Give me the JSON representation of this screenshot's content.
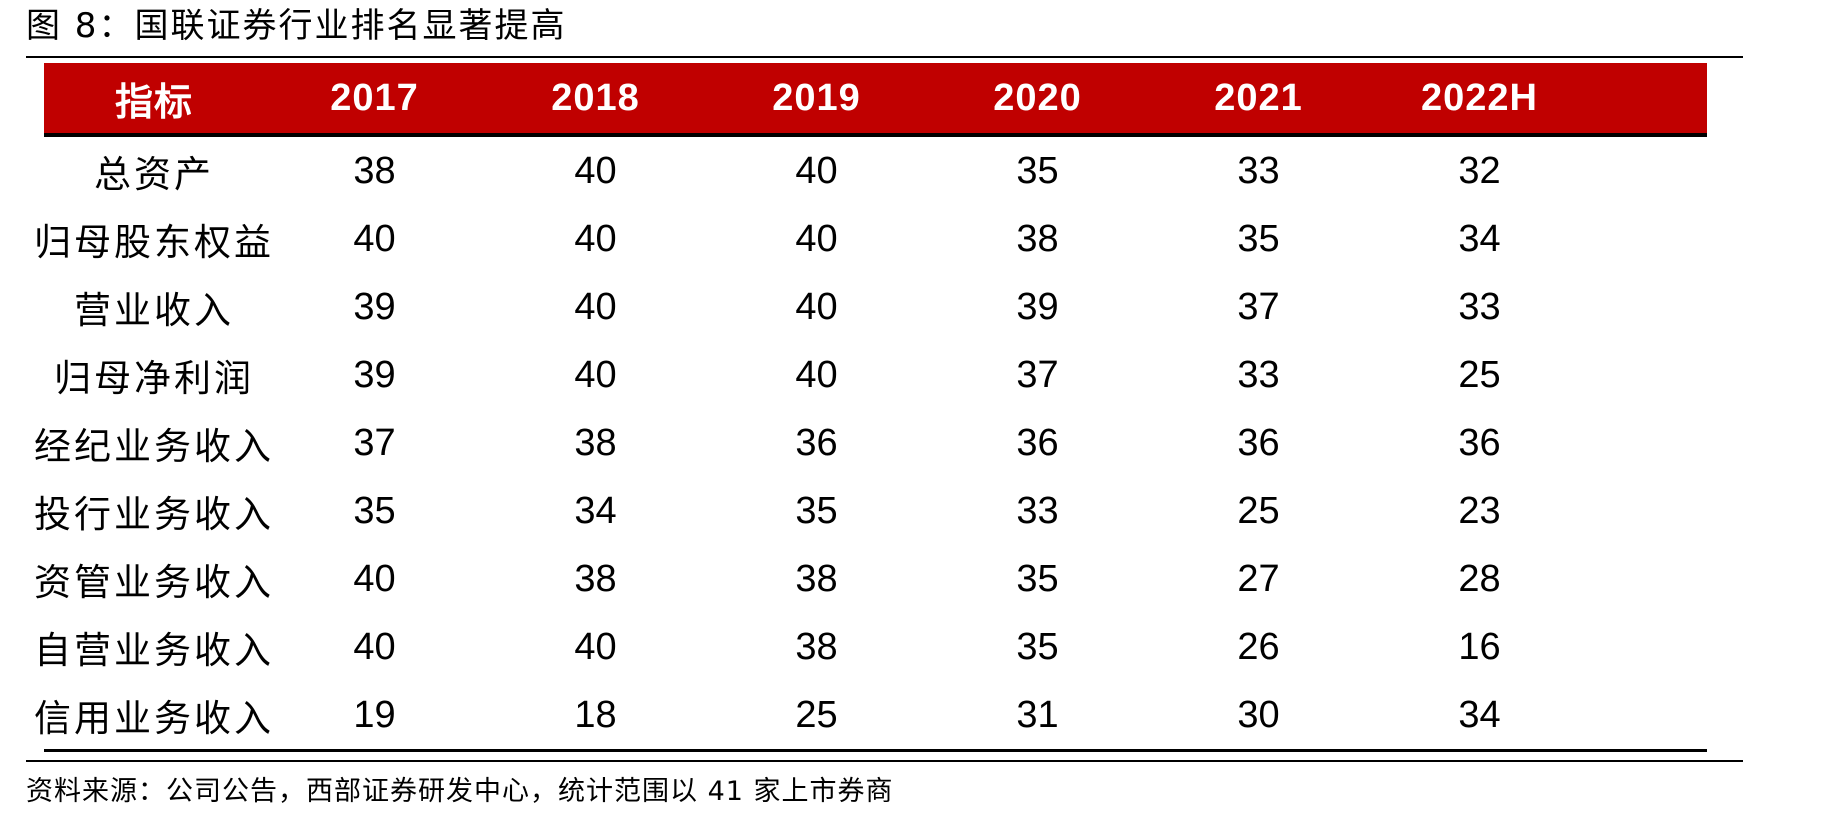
{
  "title": "图 8：国联证券行业排名显著提高",
  "colors": {
    "header_bg": "#c00000",
    "header_text": "#ffffff",
    "rule": "#000000"
  },
  "table": {
    "columns": [
      "指标",
      "2017",
      "2018",
      "2019",
      "2020",
      "2021",
      "2022H"
    ],
    "rows": [
      {
        "label": "总资产",
        "values": [
          "38",
          "40",
          "40",
          "35",
          "33",
          "32"
        ]
      },
      {
        "label": "归母股东权益",
        "values": [
          "40",
          "40",
          "40",
          "38",
          "35",
          "34"
        ]
      },
      {
        "label": "营业收入",
        "values": [
          "39",
          "40",
          "40",
          "39",
          "37",
          "33"
        ]
      },
      {
        "label": "归母净利润",
        "values": [
          "39",
          "40",
          "40",
          "37",
          "33",
          "25"
        ]
      },
      {
        "label": "经纪业务收入",
        "values": [
          "37",
          "38",
          "36",
          "36",
          "36",
          "36"
        ]
      },
      {
        "label": "投行业务收入",
        "values": [
          "35",
          "34",
          "35",
          "33",
          "25",
          "23"
        ]
      },
      {
        "label": "资管业务收入",
        "values": [
          "40",
          "38",
          "38",
          "35",
          "27",
          "28"
        ]
      },
      {
        "label": "自营业务收入",
        "values": [
          "40",
          "40",
          "38",
          "35",
          "26",
          "16"
        ]
      },
      {
        "label": "信用业务收入",
        "values": [
          "19",
          "18",
          "25",
          "31",
          "30",
          "34"
        ]
      }
    ]
  },
  "source": "资料来源：公司公告，西部证券研发中心，统计范围以 41 家上市券商"
}
